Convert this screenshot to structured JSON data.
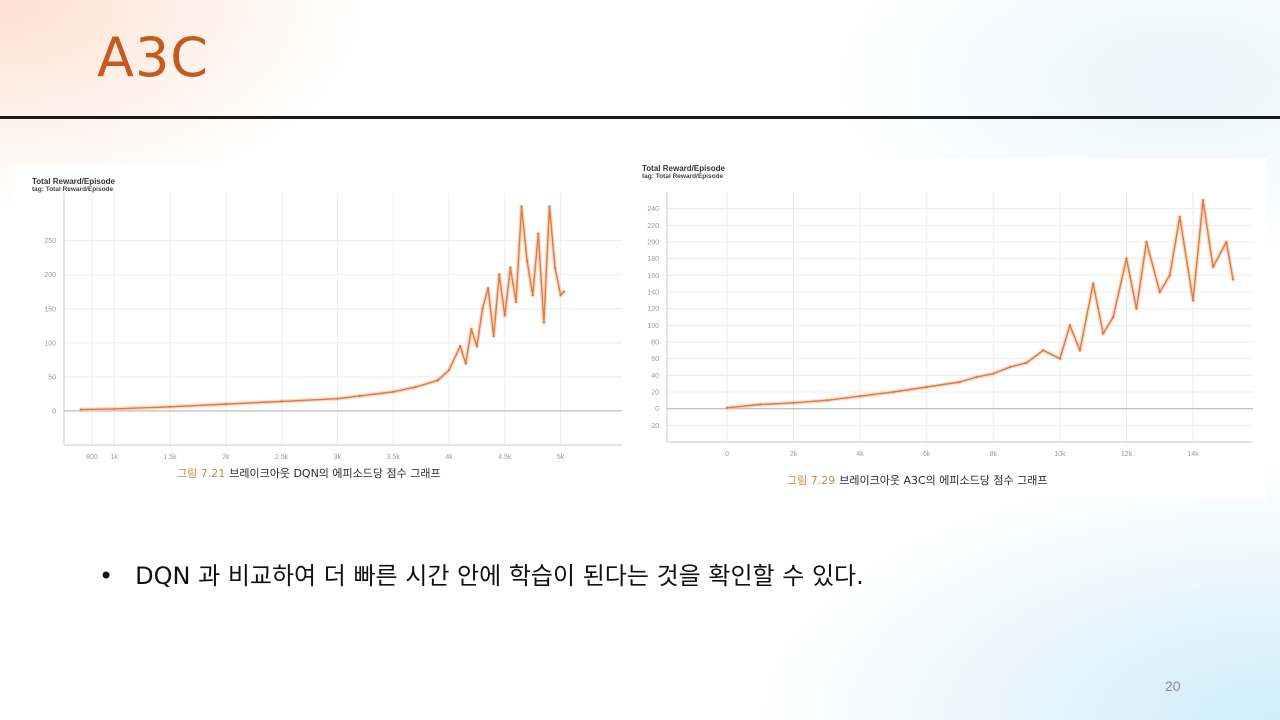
{
  "slide": {
    "title": "A3C",
    "bullet": "DQN 과 비교하여 더 빠른 시간 안에 학습이 된다는 것을 확인할 수 있다.",
    "page_number": "20"
  },
  "colors": {
    "title": "#c65a1e",
    "series": "#e3793f",
    "series_faint": "#f2c3a4",
    "grid": "#ececec",
    "axis": "#c8c8c8"
  },
  "chart_data": [
    {
      "type": "line",
      "header_title": "Total Reward/Episode",
      "header_tag": "tag: Total Reward/Episode",
      "caption_number": "그림 7.21",
      "caption_text": "브레이크아웃 DQN의 에피소드당 점수 그래프",
      "x_ticks": [
        800,
        1000,
        1500,
        2000,
        2500,
        3000,
        3500,
        4000,
        4500,
        5000
      ],
      "x_tick_labels": [
        "800",
        "1k",
        "1.5k",
        "2k",
        "2.5k",
        "3k",
        "3.5k",
        "4k",
        "4.5k",
        "5k"
      ],
      "y_ticks": [
        0,
        50,
        100,
        150,
        200,
        250
      ],
      "y_tick_labels": [
        "0",
        "50",
        "100",
        "150",
        "200",
        "250"
      ],
      "xlim": [
        550,
        5550
      ],
      "ylim": [
        -50,
        320
      ],
      "grid": true,
      "series": [
        {
          "x": [
            700,
            1000,
            1500,
            2000,
            2500,
            3000,
            3200,
            3500,
            3700,
            3900,
            4000,
            4100,
            4150,
            4200,
            4250,
            4300,
            4350,
            4400,
            4450,
            4500,
            4550,
            4600,
            4650,
            4700,
            4750,
            4800,
            4850,
            4900,
            4950,
            5000,
            5030
          ],
          "y": [
            2,
            3,
            6,
            10,
            14,
            18,
            22,
            28,
            35,
            45,
            60,
            95,
            70,
            120,
            95,
            150,
            180,
            110,
            200,
            140,
            210,
            160,
            300,
            220,
            170,
            260,
            130,
            300,
            210,
            170,
            175
          ]
        }
      ]
    },
    {
      "type": "line",
      "header_title": "Total Reward/Episode",
      "header_tag": "tag: Total Reward/Episode",
      "caption_number": "그림 7.29",
      "caption_text": "브레이크아웃 A3C의 에피소드당 점수 그래프",
      "x_ticks": [
        0,
        2000,
        4000,
        6000,
        8000,
        10000,
        12000,
        14000
      ],
      "x_tick_labels": [
        "0",
        "2k",
        "4k",
        "6k",
        "8k",
        "10k",
        "12k",
        "14k"
      ],
      "y_ticks": [
        -20,
        0,
        20,
        40,
        60,
        80,
        100,
        120,
        140,
        160,
        180,
        200,
        220,
        240
      ],
      "y_tick_labels": [
        "-20",
        "0",
        "20",
        "40",
        "60",
        "80",
        "100",
        "120",
        "140",
        "160",
        "180",
        "200",
        "220",
        "240"
      ],
      "xlim": [
        -1800,
        15800
      ],
      "ylim": [
        -40,
        260
      ],
      "grid": true,
      "series": [
        {
          "x": [
            0,
            1000,
            2000,
            3000,
            4000,
            5000,
            6000,
            7000,
            7500,
            8000,
            8500,
            9000,
            9500,
            10000,
            10300,
            10600,
            11000,
            11300,
            11600,
            12000,
            12300,
            12600,
            13000,
            13300,
            13600,
            14000,
            14300,
            14600,
            15000,
            15200
          ],
          "y": [
            1,
            5,
            7,
            10,
            15,
            20,
            26,
            32,
            38,
            42,
            50,
            55,
            70,
            60,
            100,
            70,
            150,
            90,
            110,
            180,
            120,
            200,
            140,
            160,
            230,
            130,
            250,
            170,
            200,
            155
          ]
        }
      ]
    }
  ]
}
